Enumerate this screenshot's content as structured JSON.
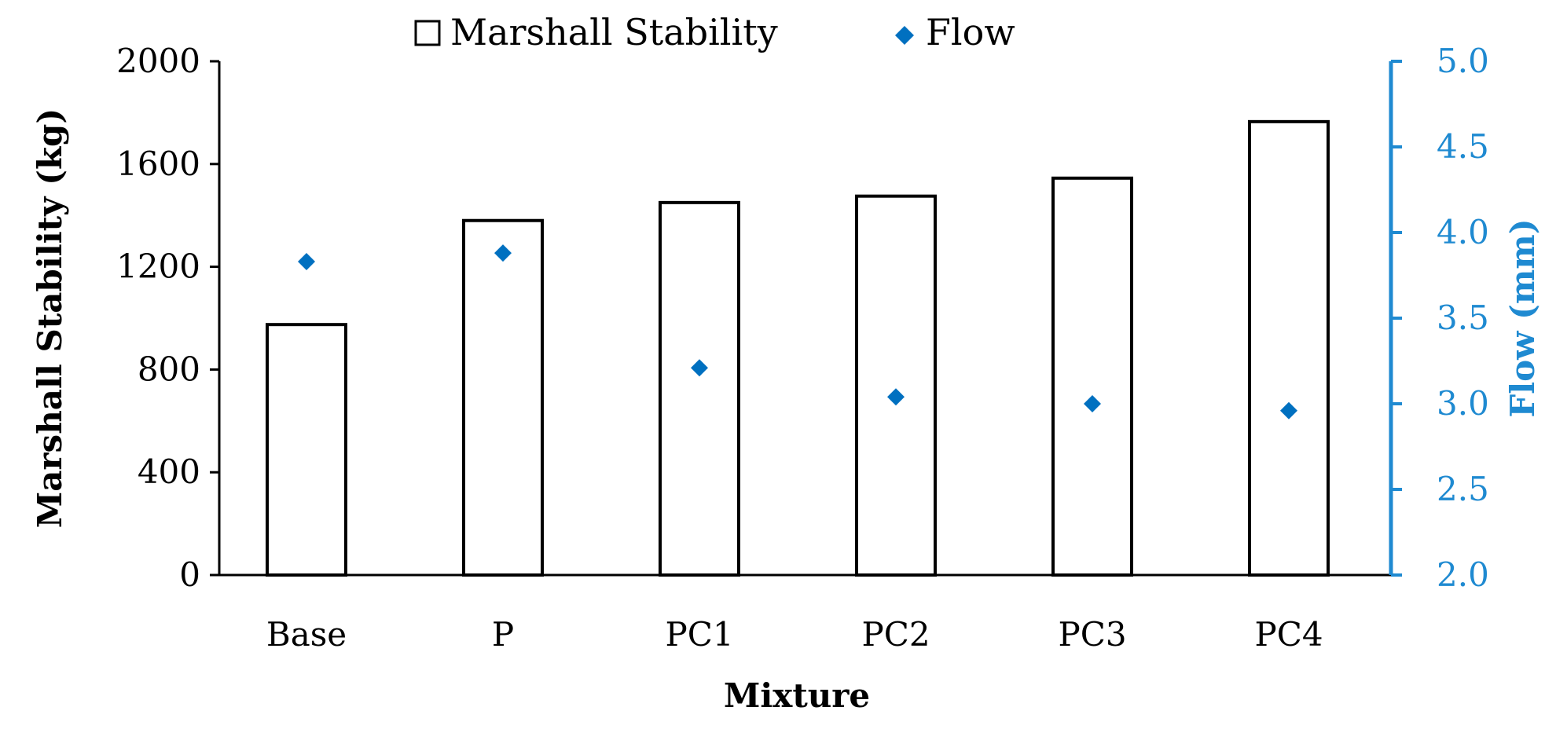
{
  "chart_data": {
    "type": "bar",
    "categories": [
      "Base",
      "P",
      "PC1",
      "PC2",
      "PC3",
      "PC4"
    ],
    "series": [
      {
        "name": "Marshall Stability",
        "kind": "bar",
        "axis": "left",
        "values": [
          975,
          1380,
          1450,
          1475,
          1545,
          1765
        ]
      },
      {
        "name": "Flow",
        "kind": "scatter",
        "axis": "right",
        "values": [
          3.83,
          3.88,
          3.21,
          3.04,
          3.0,
          2.96
        ]
      }
    ],
    "xlabel": "Mixture",
    "ylabel": "Marshall Stability (kg)",
    "ylabel_right": "Flow (mm)",
    "ylim": [
      0,
      2000
    ],
    "ylim_right": [
      2.0,
      5.0
    ],
    "yticks": [
      "0",
      "400",
      "800",
      "1200",
      "1600",
      "2000"
    ],
    "yticks_right": [
      "2.0",
      "2.5",
      "3.0",
      "3.5",
      "4.0",
      "4.5",
      "5.0"
    ],
    "legend": [
      {
        "label": "Marshall Stability",
        "marker": "hollow-square"
      },
      {
        "label": "Flow",
        "marker": "diamond"
      }
    ],
    "legend_position": "top-center",
    "grid": false,
    "colors": {
      "bar_stroke": "#000000",
      "bar_fill": "#ffffff",
      "flow": "#0070c0",
      "right_axis": "#1f8ad1"
    }
  }
}
